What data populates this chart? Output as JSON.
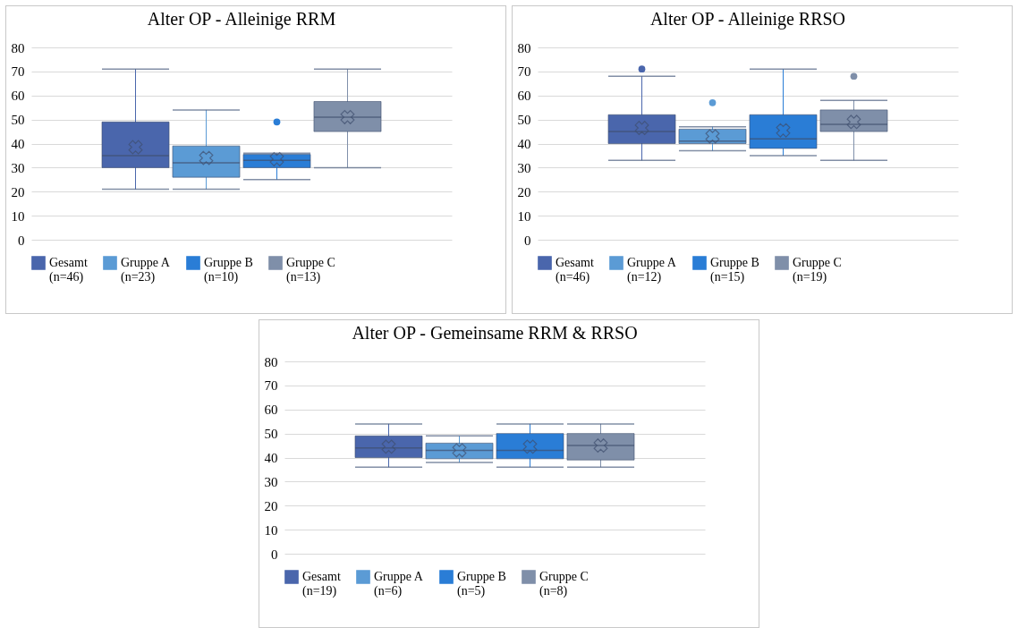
{
  "chart_data": [
    {
      "type": "box",
      "title": "Alter OP - Alleinige RRM",
      "categories": [
        null
      ],
      "ylim": [
        0,
        80
      ],
      "yticks": [
        0,
        10,
        20,
        30,
        40,
        50,
        60,
        70,
        80
      ],
      "grid": "y",
      "legend": "bottom",
      "tick_labels": "y",
      "series": [
        {
          "name": "Gesamt\n(n=46)",
          "color": "#4a66ac",
          "boxes": [
            {
              "low": 21,
              "q1": 30,
              "median": 35,
              "q3": 49,
              "high": 71,
              "mean": 38.5
            }
          ]
        },
        {
          "name": "Gruppe A\n(n=23)",
          "color": "#5b9bd5",
          "boxes": [
            {
              "low": 21,
              "q1": 26,
              "median": 32,
              "q3": 39,
              "high": 54,
              "mean": 34
            }
          ]
        },
        {
          "name": "Gruppe B\n(n=10)",
          "color": "#2a7dd6",
          "boxes": [
            {
              "low": 25,
              "q1": 30,
              "median": 33,
              "q3": 35.5,
              "high": 36,
              "mean": 33.5,
              "outliers": [
                49
              ]
            }
          ]
        },
        {
          "name": "Gruppe C\n(n=13)",
          "color": "#7f8fa9",
          "boxes": [
            {
              "low": 30,
              "q1": 45,
              "median": 51,
              "q3": 57.5,
              "high": 71,
              "mean": 51
            }
          ]
        }
      ]
    },
    {
      "type": "box",
      "title": "Alter OP - Alleinige RRSO",
      "categories": [
        null
      ],
      "ylim": [
        0,
        80
      ],
      "yticks": [
        0,
        10,
        20,
        30,
        40,
        50,
        60,
        70,
        80
      ],
      "grid": "y",
      "legend": "bottom",
      "tick_labels": "y",
      "series": [
        {
          "name": "Gesamt\n(n=46)",
          "color": "#4a66ac",
          "boxes": [
            {
              "low": 33,
              "q1": 40,
              "median": 45,
              "q3": 52,
              "high": 68,
              "mean": 46.5,
              "outliers": [
                71
              ]
            }
          ]
        },
        {
          "name": "Gruppe A\n(n=12)",
          "color": "#5b9bd5",
          "boxes": [
            {
              "low": 37,
              "q1": 40,
              "median": 41,
              "q3": 46,
              "high": 47,
              "mean": 43,
              "outliers": [
                57
              ]
            }
          ]
        },
        {
          "name": "Gruppe B\n(n=15)",
          "color": "#2a7dd6",
          "boxes": [
            {
              "low": 35,
              "q1": 38,
              "median": 42,
              "q3": 52,
              "high": 71,
              "mean": 45.5
            }
          ]
        },
        {
          "name": "Gruppe C\n(n=19)",
          "color": "#7f8fa9",
          "boxes": [
            {
              "low": 33,
              "q1": 45,
              "median": 48,
              "q3": 54,
              "high": 58,
              "mean": 49,
              "outliers": [
                68
              ]
            }
          ]
        }
      ]
    },
    {
      "type": "box",
      "title": "Alter OP - Gemeinsame RRM & RRSO",
      "categories": [
        null
      ],
      "ylim": [
        0,
        80
      ],
      "yticks": [
        0,
        10,
        20,
        30,
        40,
        50,
        60,
        70,
        80
      ],
      "grid": "y",
      "legend": "bottom",
      "tick_labels": "y",
      "series": [
        {
          "name": "Gesamt\n(n=19)",
          "color": "#4a66ac",
          "boxes": [
            {
              "low": 36,
              "q1": 40,
              "median": 44,
              "q3": 49,
              "high": 54,
              "mean": 44.5
            }
          ]
        },
        {
          "name": "Gruppe A\n(n=6)",
          "color": "#5b9bd5",
          "boxes": [
            {
              "low": 38,
              "q1": 39.5,
              "median": 43,
              "q3": 46,
              "high": 49,
              "mean": 43
            }
          ]
        },
        {
          "name": "Gruppe B\n(n=5)",
          "color": "#2a7dd6",
          "boxes": [
            {
              "low": 36,
              "q1": 39.5,
              "median": 43,
              "q3": 50,
              "high": 54,
              "mean": 44.5
            }
          ]
        },
        {
          "name": "Gruppe C\n(n=8)",
          "color": "#7f8fa9",
          "boxes": [
            {
              "low": 36,
              "q1": 39,
              "median": 45,
              "q3": 50,
              "high": 54,
              "mean": 45
            }
          ]
        }
      ]
    }
  ]
}
